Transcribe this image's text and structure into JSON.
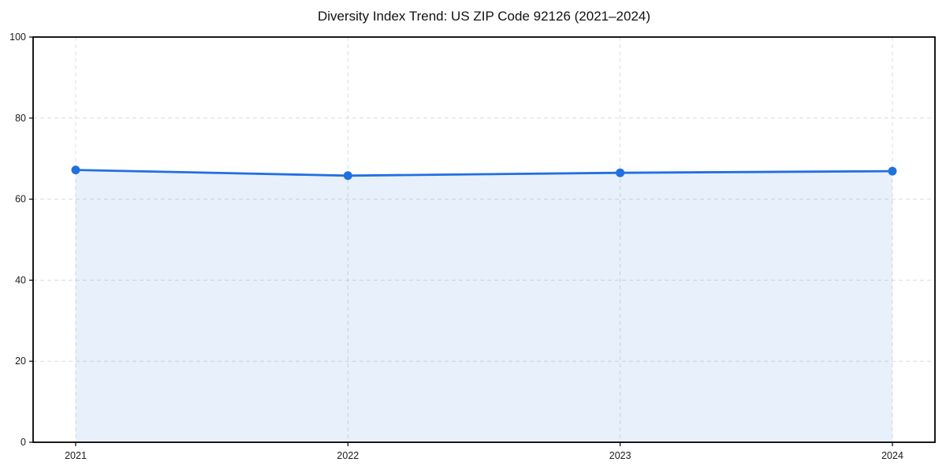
{
  "page": {
    "background_color": "#ffffff"
  },
  "chart_data": {
    "type": "area",
    "title": "Diversity Index Trend: US ZIP Code 92126 (2021–2024)",
    "categories": [
      "2021",
      "2022",
      "2023",
      "2024"
    ],
    "series": [
      {
        "name": "Diversity Index",
        "values": [
          67.2,
          65.8,
          66.5,
          66.9
        ]
      }
    ],
    "xlabel": "",
    "ylabel": "",
    "ylim": [
      0,
      100
    ],
    "yticks": [
      0,
      20,
      40,
      60,
      80,
      100
    ],
    "grid": true,
    "grid_style": "dashed",
    "legend_position": "none",
    "line_color": "#2170e0",
    "marker_color": "#2170e0",
    "fill_color": "rgba(33, 112, 224, 0.10)",
    "grid_color": "#dcdcdc",
    "axis_color": "#000000",
    "tick_label_color": "#1a1a1a"
  }
}
